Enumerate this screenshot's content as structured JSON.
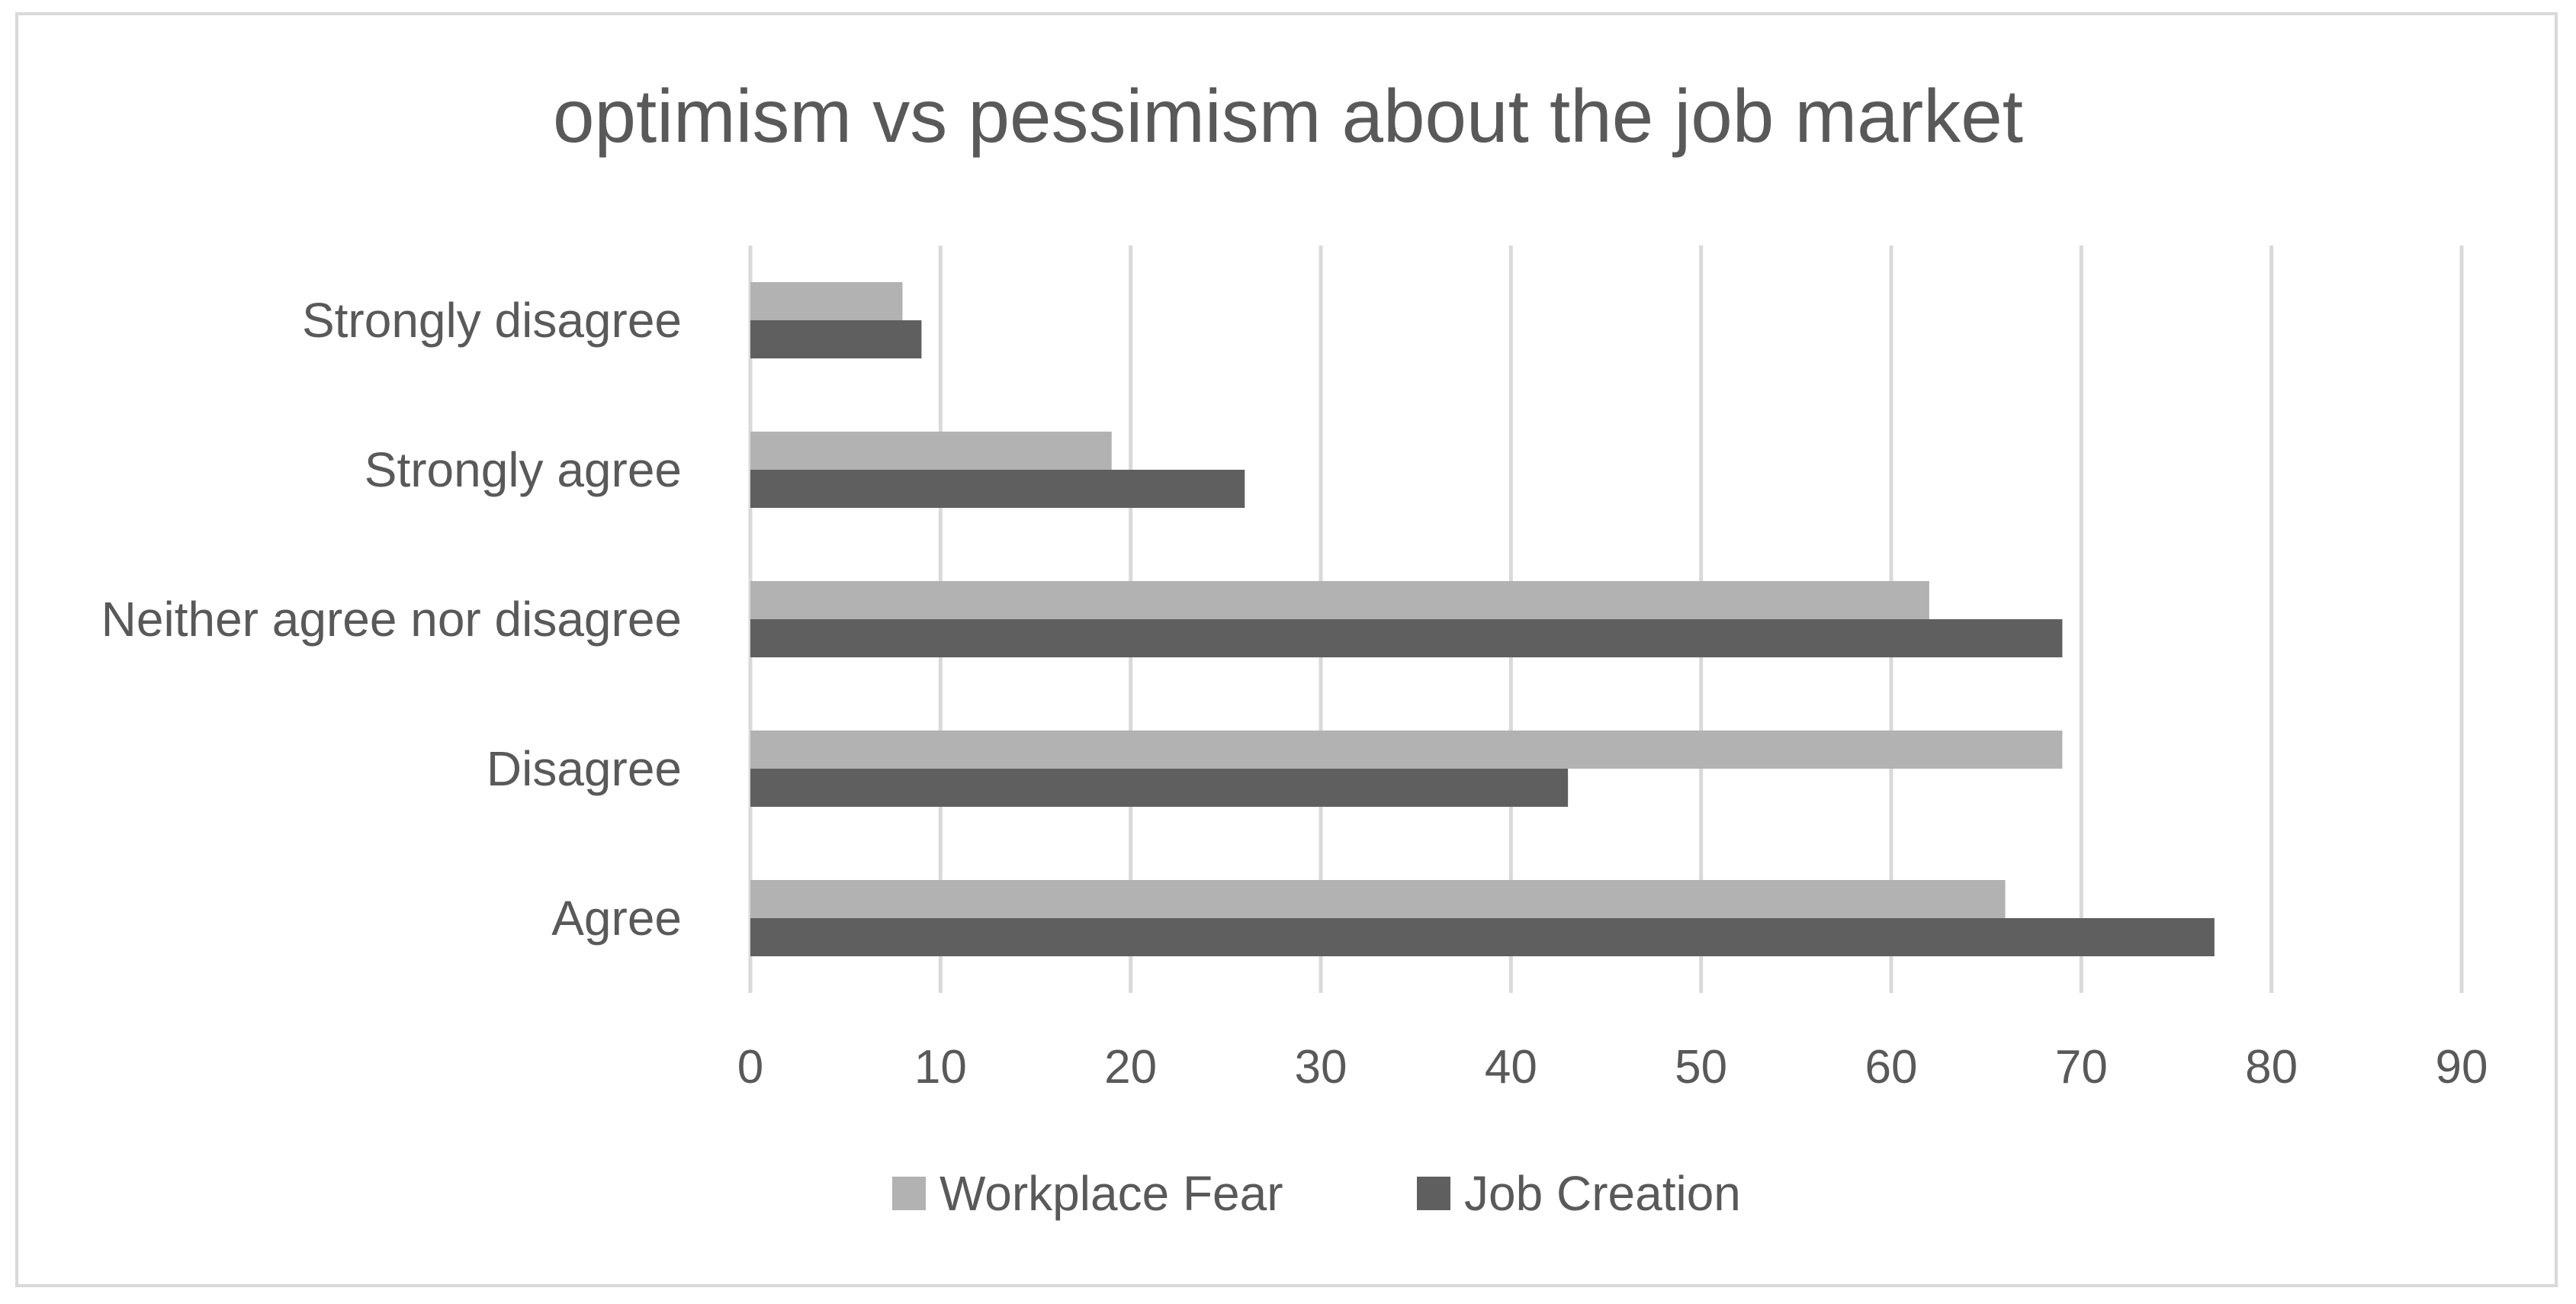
{
  "chart_data": {
    "type": "bar",
    "orientation": "horizontal",
    "title": "optimism vs pessimism about the job market",
    "categories": [
      "Agree",
      "Disagree",
      "Neither agree nor disagree",
      "Strongly agree",
      "Strongly disagree"
    ],
    "series": [
      {
        "name": "Workplace Fear",
        "values": [
          66,
          69,
          62,
          19,
          8
        ],
        "color": "#b2b2b2"
      },
      {
        "name": "Job Creation",
        "values": [
          77,
          43,
          69,
          26,
          9
        ],
        "color": "#5f5f5f"
      }
    ],
    "xlim": [
      0,
      90
    ],
    "xticks": [
      "0",
      "10",
      "20",
      "30",
      "40",
      "50",
      "60",
      "70",
      "80",
      "90"
    ],
    "grid": true,
    "legend_position": "bottom"
  }
}
